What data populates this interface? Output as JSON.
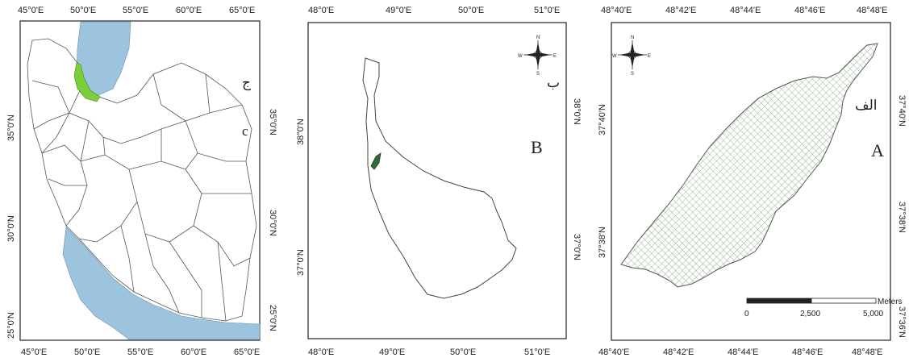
{
  "colors": {
    "water": "#9cc4df",
    "highlight": "#7ccf3a",
    "hatch": "#7fa77a",
    "frame": "#222222"
  },
  "panel_c": {
    "letter_persian": "ج",
    "letter_latin": "c",
    "top_ticks": [
      "45°0'E",
      "50°0'E",
      "55°0'E",
      "60°0'E",
      "65°0'E"
    ],
    "bottom_ticks": [
      "45°0'E",
      "50°0'E",
      "55°0'E",
      "60°0'E",
      "65°0'E"
    ],
    "left_ticks": [
      "35°0'N",
      "30°0'N",
      "25°0'N"
    ],
    "right_ticks": [
      "35°0'N",
      "30°0'N",
      "25°0'N"
    ]
  },
  "panel_b": {
    "letter_persian": "ب",
    "letter_latin": "B",
    "top_ticks": [
      "48°0'E",
      "49°0'E",
      "50°0'E",
      "51°0'E"
    ],
    "bottom_ticks": [
      "48°0'E",
      "49°0'E",
      "50°0'E",
      "51°0'E"
    ],
    "left_ticks": [
      "38°0'N",
      "37°0'N"
    ],
    "right_ticks": [
      "38°0'N",
      "37°0'N"
    ]
  },
  "panel_a": {
    "letter_persian": "الف",
    "letter_latin": "A",
    "top_ticks": [
      "48°40'E",
      "48°42'E",
      "48°44'E",
      "48°46'E",
      "48°48'E"
    ],
    "bottom_ticks": [
      "48°40'E",
      "48°42'E",
      "48°44'E",
      "48°46'E",
      "48°48'E"
    ],
    "left_ticks": [
      "37°40'N",
      "37°38'N"
    ],
    "right_ticks": [
      "37°40'N",
      "37°38'N",
      "37°36'N"
    ],
    "scale_bar": {
      "labels": [
        "0",
        "2,500",
        "5,000"
      ],
      "unit": "Meters"
    }
  },
  "north_arrow": {
    "labels": [
      "N",
      "E",
      "S",
      "W"
    ]
  }
}
